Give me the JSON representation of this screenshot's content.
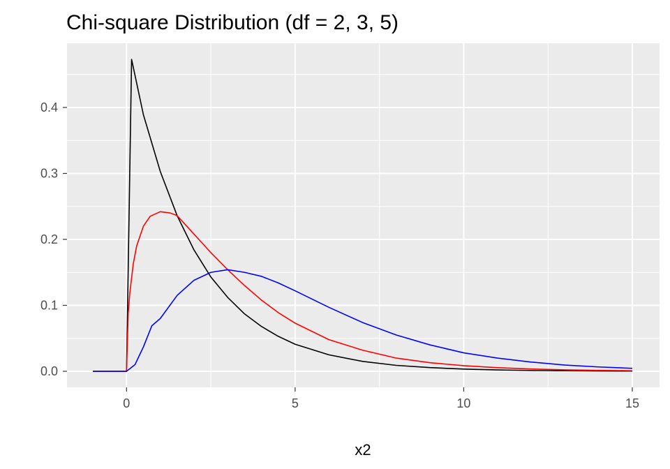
{
  "chart_data": {
    "type": "line",
    "title": "Chi-square Distribution (df = 2, 3, 5)",
    "xlabel": "x2",
    "ylabel": "",
    "xlim": [
      -1,
      15
    ],
    "ylim": [
      0,
      0.473
    ],
    "x_ticks": [
      0,
      5,
      10,
      15
    ],
    "x_tick_labels": [
      "0",
      "5",
      "10",
      "15"
    ],
    "y_ticks": [
      0,
      0.1,
      0.2,
      0.3,
      0.4
    ],
    "y_tick_labels": [
      "0.0",
      "0.1",
      "0.2",
      "0.3",
      "0.4"
    ],
    "grid": true,
    "legend": "none",
    "background": "#EBEBEB",
    "series": [
      {
        "color": "#000000",
        "df": 2,
        "x": [
          -1,
          0,
          0.15,
          0.5,
          1,
          1.5,
          2,
          2.5,
          3,
          3.5,
          4,
          4.5,
          5,
          6,
          7,
          8,
          9,
          10,
          11,
          12,
          13,
          14,
          15
        ],
        "y": [
          0,
          0,
          0.473,
          0.389,
          0.303,
          0.236,
          0.184,
          0.143,
          0.112,
          0.087,
          0.068,
          0.053,
          0.041,
          0.025,
          0.015,
          0.009,
          0.0056,
          0.0034,
          0.002,
          0.0012,
          0.0008,
          0.0005,
          0.0003
        ]
      },
      {
        "color": "#FF0000",
        "df": 3,
        "x": [
          -1,
          0,
          0.05,
          0.1,
          0.2,
          0.3,
          0.5,
          0.7,
          1,
          1.3,
          1.5,
          2,
          2.5,
          3,
          3.5,
          4,
          4.5,
          5,
          6,
          7,
          8,
          9,
          10,
          11,
          12,
          13,
          14,
          15
        ],
        "y": [
          0,
          0,
          0.088,
          0.12,
          0.163,
          0.19,
          0.22,
          0.235,
          0.242,
          0.24,
          0.236,
          0.208,
          0.18,
          0.154,
          0.13,
          0.108,
          0.089,
          0.073,
          0.048,
          0.032,
          0.02,
          0.013,
          0.0085,
          0.0055,
          0.0035,
          0.0022,
          0.0014,
          0.0009
        ]
      },
      {
        "color": "#0000FF",
        "df": 5,
        "x": [
          -1,
          0,
          0.25,
          0.5,
          0.75,
          1,
          1.5,
          2,
          2.5,
          3,
          3.5,
          4,
          4.5,
          5,
          6,
          7,
          8,
          9,
          10,
          11,
          12,
          13,
          14,
          15
        ],
        "y": [
          0,
          0,
          0.01,
          0.037,
          0.069,
          0.08,
          0.115,
          0.138,
          0.15,
          0.154,
          0.15,
          0.144,
          0.134,
          0.122,
          0.097,
          0.074,
          0.055,
          0.04,
          0.028,
          0.02,
          0.014,
          0.0095,
          0.0066,
          0.0045
        ]
      }
    ]
  }
}
